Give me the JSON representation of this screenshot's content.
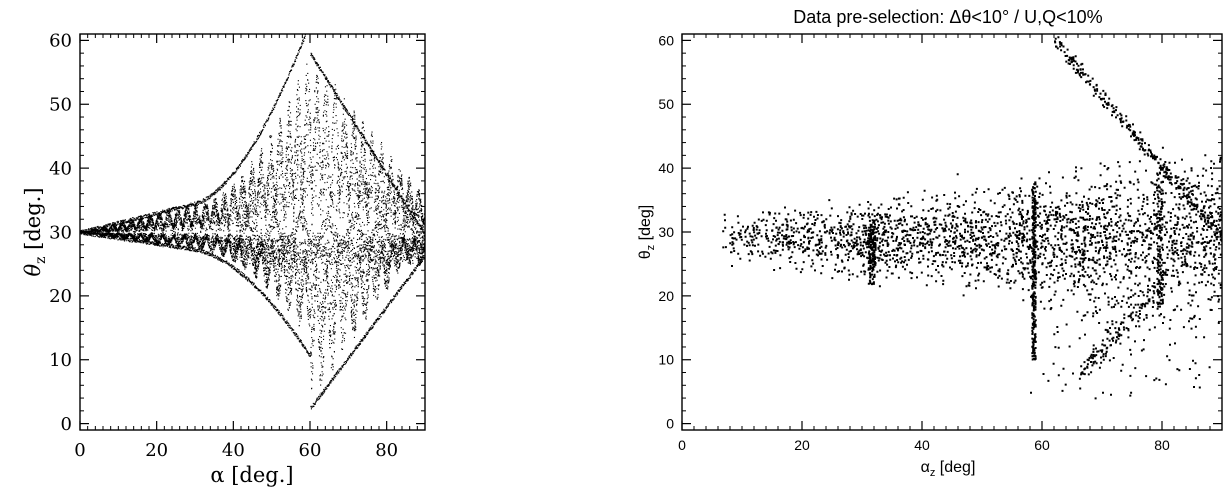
{
  "chart_data": [
    {
      "type": "scatter",
      "title": "",
      "xlabel": "α [deg.]",
      "ylabel": "θ_z [deg.]",
      "ylabel_base": "θ",
      "ylabel_sub": "z",
      "ylabel_unit": " [deg.]",
      "xlim": [
        0,
        90
      ],
      "ylim": [
        -1,
        61
      ],
      "xticks": [
        0,
        20,
        40,
        60,
        80
      ],
      "yticks": [
        0,
        10,
        20,
        30,
        40,
        50,
        60
      ],
      "grid": false,
      "legend": "none",
      "color": "#000000",
      "series": [
        {
          "values": [
            [
              0,
              30
            ],
            [
              5,
              30
            ],
            [
              10,
              30
            ],
            [
              15,
              30
            ],
            [
              20,
              30
            ],
            [
              25,
              30
            ],
            [
              30,
              30
            ],
            [
              40,
              35
            ],
            [
              50,
              42
            ],
            [
              60,
              58
            ],
            [
              62,
              3
            ],
            [
              70,
              20
            ],
            [
              80,
              30
            ],
            [
              90,
              30
            ]
          ]
        }
      ]
    },
    {
      "type": "scatter",
      "title": "Data pre-selection: Δθ<10° / U,Q<10%",
      "xlabel": "α_z [deg]",
      "xlabel_base": "α",
      "xlabel_sub": "z",
      "xlabel_unit": " [deg]",
      "ylabel": "θ_z [deg]",
      "ylabel_base": "θ",
      "ylabel_sub": "z",
      "ylabel_unit": " [deg]",
      "xlim": [
        0,
        90
      ],
      "ylim": [
        -1,
        61
      ],
      "xticks": [
        0,
        20,
        40,
        60,
        80
      ],
      "yticks": [
        0,
        10,
        20,
        30,
        40,
        50,
        60
      ],
      "grid": false,
      "legend": "none",
      "color": "#000000",
      "series": [
        {
          "values": [
            [
              7,
              32
            ],
            [
              8,
              27
            ],
            [
              10,
              31
            ],
            [
              12,
              28
            ],
            [
              15,
              29
            ],
            [
              17,
              34
            ],
            [
              20,
              27
            ],
            [
              25,
              30
            ],
            [
              30,
              28
            ],
            [
              31,
              33
            ],
            [
              35,
              26
            ],
            [
              40,
              28
            ],
            [
              45,
              32
            ],
            [
              50,
              30
            ],
            [
              55,
              25
            ],
            [
              58,
              20
            ],
            [
              58,
              5
            ],
            [
              62,
              60
            ],
            [
              70,
              50
            ],
            [
              75,
              47
            ],
            [
              78,
              42
            ],
            [
              80,
              38
            ],
            [
              82,
              41
            ],
            [
              85,
              36
            ],
            [
              88,
              33
            ],
            [
              90,
              30
            ],
            [
              80,
              22
            ],
            [
              82,
              18
            ],
            [
              85,
              10
            ],
            [
              70,
              5
            ],
            [
              65,
              8
            ]
          ]
        }
      ]
    }
  ]
}
